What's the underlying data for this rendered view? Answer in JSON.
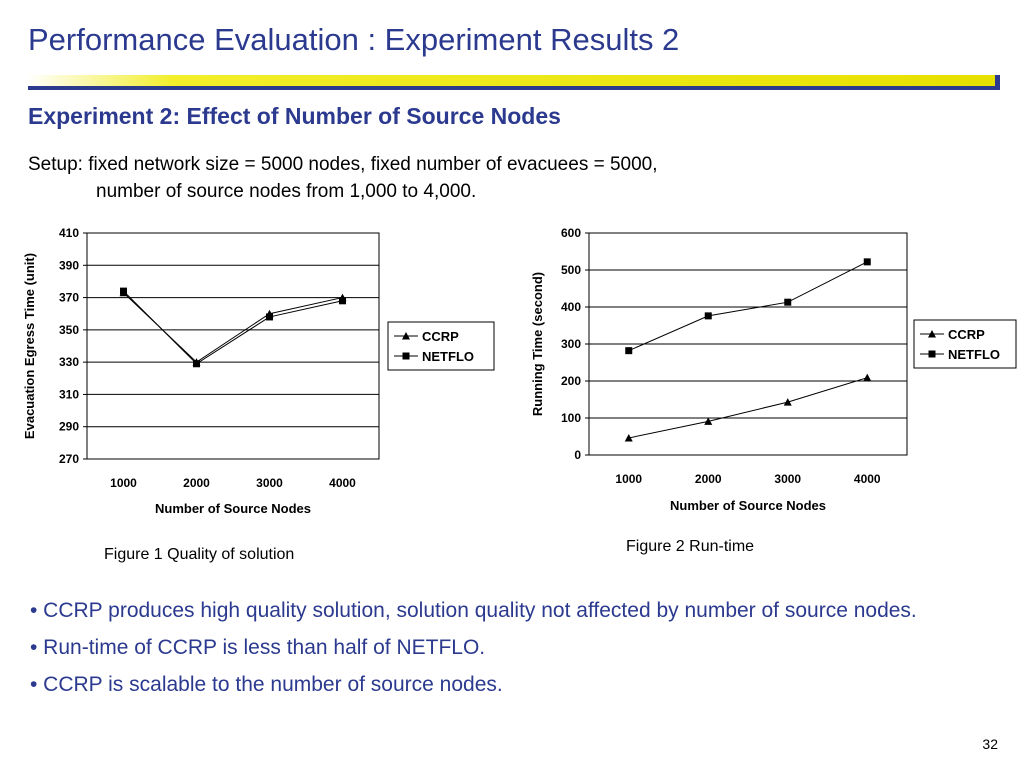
{
  "slide": {
    "title": "Performance Evaluation : Experiment Results 2",
    "subtitle": "Experiment 2: Effect of Number of Source Nodes",
    "setup_line1": "Setup: fixed network size = 5000 nodes, fixed number of evacuees = 5000,",
    "setup_line2": "number of source nodes from  1,000 to 4,000.",
    "caption1": "Figure 1 Quality of solution",
    "caption2": "Figure 2  Run-time",
    "bullets": [
      "• CCRP produces high quality solution, solution quality not affected by number of source nodes.",
      "• Run-time of CCRP is less than half of NETFLO.",
      "• CCRP is scalable to the number of source nodes."
    ],
    "page_number": "32",
    "colors": {
      "heading": "#2b3a8f",
      "rule_yellow": "#f2ee2a",
      "rule_blue": "#2b3a8f"
    }
  },
  "chart_data": [
    {
      "type": "line",
      "categories": [
        "1000",
        "2000",
        "3000",
        "4000"
      ],
      "series": [
        {
          "name": "CCRP",
          "marker": "triangle",
          "values": [
            373,
            330,
            360,
            370
          ]
        },
        {
          "name": "NETFLO",
          "marker": "square",
          "values": [
            374,
            329,
            358,
            368
          ]
        }
      ],
      "xlabel": "Number of Source Nodes",
      "ylabel": "Evacuation Egress Time (unit)",
      "ylim": [
        270,
        410
      ],
      "yticks": [
        410,
        390,
        370,
        350,
        330,
        310,
        290,
        270
      ],
      "grid": true,
      "legend": "right"
    },
    {
      "type": "line",
      "categories": [
        "1000",
        "2000",
        "3000",
        "4000"
      ],
      "series": [
        {
          "name": "CCRP",
          "marker": "triangle",
          "values": [
            46,
            91,
            143,
            209
          ]
        },
        {
          "name": "NETFLO",
          "marker": "square",
          "values": [
            282,
            376,
            413,
            522
          ]
        }
      ],
      "xlabel": "Number of Source Nodes",
      "ylabel": "Running Time (second)",
      "ylim": [
        0,
        600
      ],
      "yticks": [
        600,
        500,
        400,
        300,
        200,
        100,
        0
      ],
      "grid": true,
      "legend": "right"
    }
  ]
}
